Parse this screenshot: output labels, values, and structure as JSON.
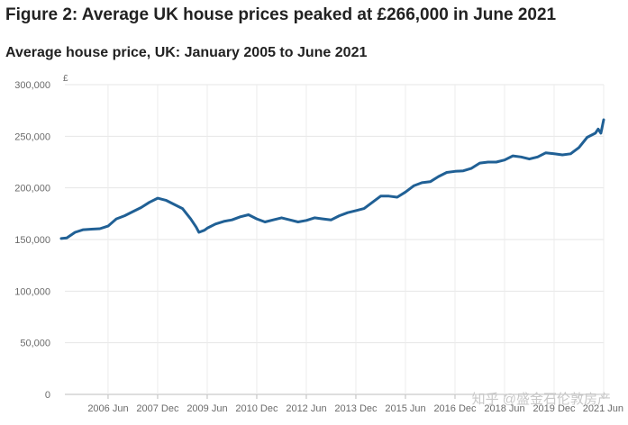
{
  "figure": {
    "title": "Figure 2: Average UK house prices peaked at £266,000 in June 2021",
    "subtitle": "Average house price, UK: January 2005 to June 2021",
    "watermark": "知乎 @盛金石伦敦房产"
  },
  "chart_data": {
    "type": "line",
    "title": "Average house price, UK: January 2005 to June 2021",
    "xlabel": "",
    "ylabel": "£",
    "ylim": [
      0,
      300000
    ],
    "yticks": [
      0,
      50000,
      100000,
      150000,
      200000,
      250000,
      300000
    ],
    "ytick_labels": [
      "0",
      "50,000",
      "100,000",
      "150,000",
      "200,000",
      "250,000",
      "300,000"
    ],
    "xlim": [
      "2005-01",
      "2021-06"
    ],
    "xticks": [
      "2006-06",
      "2007-12",
      "2009-06",
      "2010-12",
      "2012-06",
      "2013-12",
      "2015-06",
      "2016-12",
      "2018-06",
      "2019-12",
      "2021-06"
    ],
    "xtick_labels": [
      "2006 Jun",
      "2007 Dec",
      "2009 Jun",
      "2010 Dec",
      "2012 Jun",
      "2013 Dec",
      "2015 Jun",
      "2016 Dec",
      "2018 Jun",
      "2019 Dec",
      "2021 Jun"
    ],
    "grid": true,
    "legend": "none",
    "color": "#206095",
    "series": [
      {
        "points": [
          [
            "2005-01",
            151000
          ],
          [
            "2005-03",
            151500
          ],
          [
            "2005-06",
            157000
          ],
          [
            "2005-09",
            159500
          ],
          [
            "2005-12",
            160000
          ],
          [
            "2006-03",
            160500
          ],
          [
            "2006-06",
            163000
          ],
          [
            "2006-09",
            170000
          ],
          [
            "2006-12",
            173000
          ],
          [
            "2007-03",
            177000
          ],
          [
            "2007-06",
            181000
          ],
          [
            "2007-09",
            186000
          ],
          [
            "2007-12",
            190000
          ],
          [
            "2008-03",
            188000
          ],
          [
            "2008-06",
            184000
          ],
          [
            "2008-09",
            180000
          ],
          [
            "2008-12",
            170000
          ],
          [
            "2009-02",
            162000
          ],
          [
            "2009-03",
            157000
          ],
          [
            "2009-05",
            159000
          ],
          [
            "2009-06",
            161000
          ],
          [
            "2009-09",
            165000
          ],
          [
            "2009-12",
            167500
          ],
          [
            "2010-03",
            169000
          ],
          [
            "2010-06",
            172000
          ],
          [
            "2010-09",
            174000
          ],
          [
            "2010-12",
            170000
          ],
          [
            "2011-03",
            167000
          ],
          [
            "2011-06",
            169000
          ],
          [
            "2011-09",
            171000
          ],
          [
            "2011-12",
            169000
          ],
          [
            "2012-03",
            167000
          ],
          [
            "2012-06",
            168500
          ],
          [
            "2012-09",
            171000
          ],
          [
            "2012-12",
            170000
          ],
          [
            "2013-03",
            169000
          ],
          [
            "2013-06",
            173000
          ],
          [
            "2013-09",
            176000
          ],
          [
            "2013-12",
            178000
          ],
          [
            "2014-03",
            180000
          ],
          [
            "2014-06",
            186000
          ],
          [
            "2014-09",
            192000
          ],
          [
            "2014-12",
            192000
          ],
          [
            "2015-03",
            191000
          ],
          [
            "2015-06",
            196000
          ],
          [
            "2015-09",
            202000
          ],
          [
            "2015-12",
            205000
          ],
          [
            "2016-03",
            206000
          ],
          [
            "2016-06",
            211000
          ],
          [
            "2016-09",
            215000
          ],
          [
            "2016-12",
            216000
          ],
          [
            "2017-03",
            216500
          ],
          [
            "2017-06",
            219000
          ],
          [
            "2017-09",
            224000
          ],
          [
            "2017-12",
            225000
          ],
          [
            "2018-03",
            225000
          ],
          [
            "2018-06",
            227000
          ],
          [
            "2018-09",
            231000
          ],
          [
            "2018-12",
            230000
          ],
          [
            "2019-03",
            228000
          ],
          [
            "2019-06",
            230000
          ],
          [
            "2019-09",
            234000
          ],
          [
            "2019-12",
            233000
          ],
          [
            "2020-03",
            232000
          ],
          [
            "2020-06",
            233000
          ],
          [
            "2020-09",
            239000
          ],
          [
            "2020-12",
            249000
          ],
          [
            "2021-03",
            253000
          ],
          [
            "2021-04",
            257000
          ],
          [
            "2021-05",
            253000
          ],
          [
            "2021-06",
            266000
          ]
        ]
      }
    ]
  }
}
